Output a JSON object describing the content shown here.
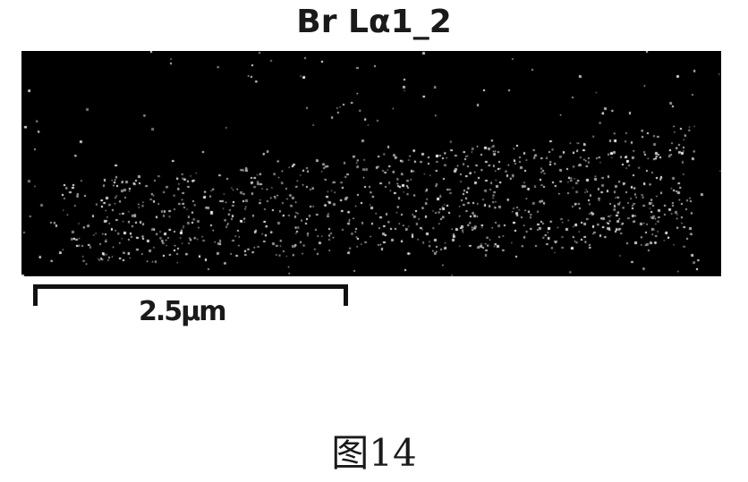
{
  "figure": {
    "title": "Br Lα1_2",
    "scale_bar_label": "2.5μm",
    "caption": "图14"
  },
  "colors": {
    "background": "#000000",
    "signal": "#ffffff"
  }
}
